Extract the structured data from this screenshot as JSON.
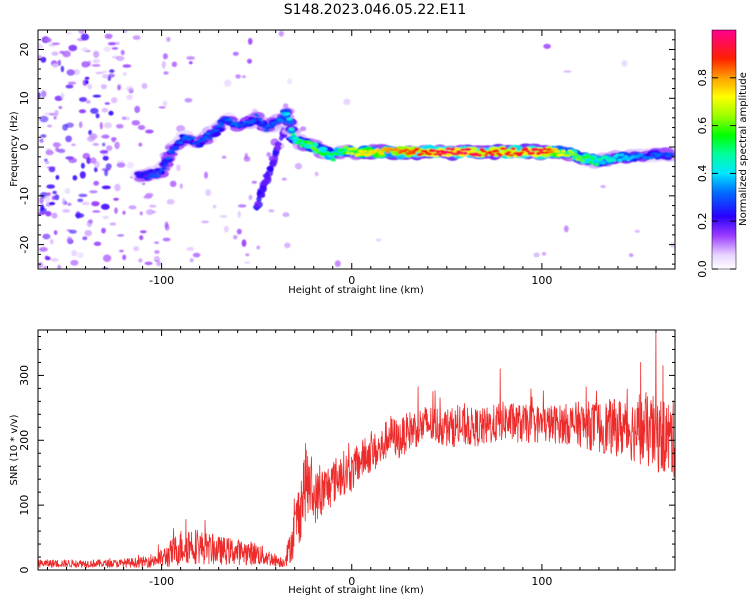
{
  "title": "S148.2023.046.05.22.E11",
  "colors": {
    "snr_line": "#ee2b2b",
    "axis": "#000000",
    "background": "#ffffff"
  },
  "chart_data": [
    {
      "type": "heatmap",
      "xlabel": "Height of straight line (km)",
      "ylabel": "Frequency (Hz)",
      "xlim": [
        -165,
        170
      ],
      "ylim": [
        -25,
        24
      ],
      "x_ticks": [
        -100,
        0,
        100
      ],
      "x_tick_labels": [
        "-100",
        "0",
        "100"
      ],
      "y_ticks": [
        -20,
        -10,
        0,
        10,
        20
      ],
      "y_tick_labels": [
        "-20",
        "-10",
        "0",
        "10",
        "20"
      ],
      "colorbar": {
        "label": "Normalized spectral amplitude",
        "range": [
          0,
          1
        ],
        "ticks": [
          0.0,
          0.2,
          0.4,
          0.6,
          0.8
        ],
        "tick_labels": [
          "0.0",
          "0.2",
          "0.4",
          "0.6",
          "0.8"
        ],
        "colormap": "rainbow-white-to-magenta"
      },
      "ridge": {
        "x": [
          -110,
          -100,
          -95,
          -88,
          -80,
          -72,
          -65,
          -60,
          -55,
          -50,
          -45,
          -40,
          -34,
          -30,
          -25,
          -20,
          -15,
          -10,
          -5,
          0,
          10,
          20,
          30,
          40,
          50,
          60,
          70,
          80,
          90,
          100,
          110,
          120,
          130,
          140,
          150,
          160,
          168
        ],
        "y": [
          -6,
          -5,
          -1,
          2,
          1,
          3,
          6,
          4,
          5,
          6,
          4,
          5,
          7,
          1.5,
          0.8,
          0,
          -1,
          -2,
          -0.5,
          -1,
          -1,
          -1,
          -1,
          -1,
          -1,
          -1,
          -1,
          -1,
          -1,
          -1,
          -1,
          -2,
          -3,
          -2,
          -2,
          -1.5,
          -1.5
        ],
        "amplitude": [
          0.25,
          0.3,
          0.3,
          0.3,
          0.3,
          0.3,
          0.3,
          0.3,
          0.3,
          0.3,
          0.3,
          0.3,
          0.4,
          0.5,
          0.55,
          0.6,
          0.55,
          0.5,
          0.55,
          0.7,
          0.75,
          0.8,
          0.85,
          0.9,
          0.95,
          0.95,
          0.9,
          0.9,
          0.9,
          0.95,
          0.7,
          0.6,
          0.5,
          0.4,
          0.35,
          0.3,
          0.3
        ]
      }
    },
    {
      "type": "line",
      "xlabel": "Height of straight line (km)",
      "ylabel": "SNR (10 * v/v)",
      "xlim": [
        -165,
        170
      ],
      "ylim": [
        0,
        370
      ],
      "x_ticks": [
        -100,
        0,
        100
      ],
      "x_tick_labels": [
        "-100",
        "0",
        "100"
      ],
      "y_ticks": [
        0,
        100,
        200,
        300
      ],
      "y_tick_labels": [
        "0",
        "100",
        "200",
        "300"
      ],
      "envelope": {
        "x": [
          -165,
          -150,
          -125,
          -110,
          -100,
          -95,
          -90,
          -85,
          -80,
          -70,
          -60,
          -50,
          -45,
          -40,
          -36,
          -33,
          -30,
          -27,
          -24,
          -20,
          -15,
          -10,
          -5,
          0,
          5,
          10,
          15,
          20,
          25,
          30,
          40,
          50,
          60,
          70,
          80,
          90,
          100,
          110,
          120,
          130,
          140,
          150,
          160,
          170
        ],
        "mean": [
          10,
          10,
          10,
          12,
          18,
          25,
          35,
          40,
          35,
          30,
          28,
          25,
          20,
          15,
          12,
          30,
          60,
          100,
          140,
          110,
          120,
          135,
          150,
          150,
          170,
          180,
          185,
          210,
          200,
          215,
          225,
          220,
          220,
          220,
          230,
          225,
          225,
          225,
          225,
          220,
          220,
          215,
          210,
          200
        ],
        "spread": [
          6,
          6,
          6,
          8,
          14,
          22,
          28,
          30,
          26,
          22,
          20,
          18,
          14,
          10,
          8,
          22,
          40,
          55,
          60,
          40,
          40,
          35,
          35,
          30,
          30,
          30,
          30,
          30,
          30,
          30,
          30,
          30,
          30,
          30,
          30,
          30,
          30,
          30,
          35,
          40,
          45,
          50,
          60,
          60
        ]
      },
      "peak_points": [
        {
          "x": 78,
          "y": 310
        },
        {
          "x": 152,
          "y": 320
        },
        {
          "x": 160,
          "y": 368
        }
      ]
    }
  ]
}
